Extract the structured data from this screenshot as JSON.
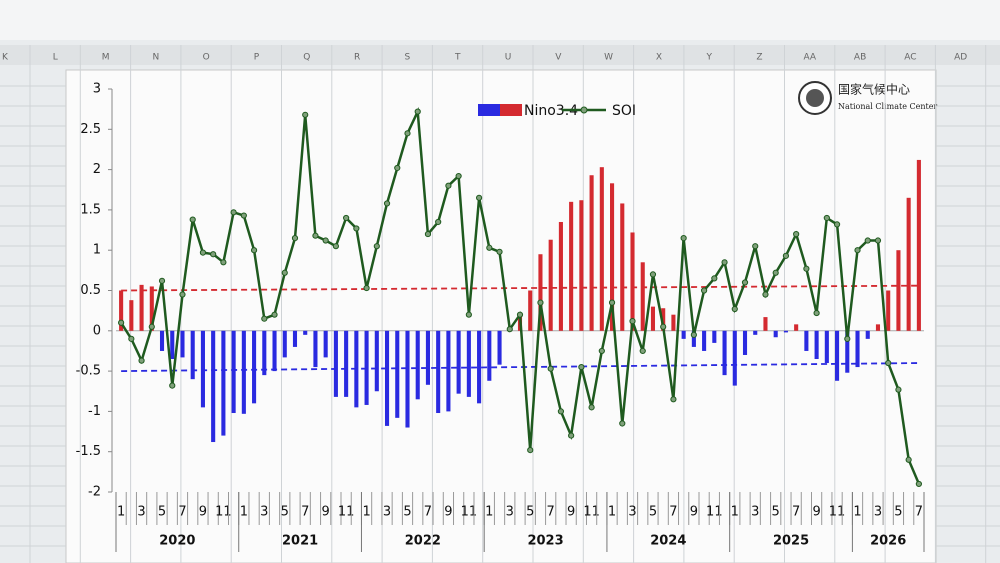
{
  "spreadsheet": {
    "columns": [
      "K",
      "L",
      "M",
      "N",
      "O",
      "P",
      "Q",
      "R",
      "S",
      "T",
      "U",
      "V",
      "W",
      "X",
      "Y",
      "Z",
      "AA",
      "AB",
      "AC",
      "AD"
    ]
  },
  "logo": {
    "name": "国家气候中心",
    "name_en": "National Climate Center"
  },
  "chart_data": {
    "type": "combo",
    "categories": [
      "1",
      null,
      "3",
      null,
      "5",
      null,
      "7",
      null,
      "9",
      null,
      "11",
      null,
      "1",
      null,
      "3",
      null,
      "5",
      null,
      "7",
      null,
      "9",
      null,
      "11",
      null,
      "1",
      null,
      "3",
      null,
      "5",
      null,
      "7",
      null,
      "9",
      null,
      "11",
      null,
      "1",
      null,
      "3",
      null,
      "5",
      null,
      "7",
      null,
      "9",
      null,
      "11",
      null,
      "1",
      null,
      "3",
      null,
      "5",
      null,
      "7",
      null,
      "9",
      null,
      "11",
      null,
      "1",
      null,
      "3",
      null,
      "5",
      null,
      "7",
      null,
      "9",
      null,
      "11",
      null,
      "1",
      null,
      "3",
      null,
      "5",
      null,
      "7"
    ],
    "groups": [
      {
        "label": "2020",
        "size": 12
      },
      {
        "label": "2021",
        "size": 12
      },
      {
        "label": "2022",
        "size": 12
      },
      {
        "label": "2023",
        "size": 12
      },
      {
        "label": "2024",
        "size": 12
      },
      {
        "label": "2025",
        "size": 12
      },
      {
        "label": "2026",
        "size": 7
      }
    ],
    "series": [
      {
        "name": "Nino3.4",
        "type": "bar",
        "positive_color": "#d42a30",
        "negative_color": "#2a2ae0",
        "values": [
          0.5,
          0.38,
          0.57,
          0.55,
          -0.25,
          -0.35,
          -0.33,
          -0.6,
          -0.95,
          -1.38,
          -1.3,
          -1.02,
          -1.03,
          -0.9,
          -0.55,
          -0.5,
          -0.33,
          -0.2,
          -0.05,
          -0.45,
          -0.33,
          -0.82,
          -0.82,
          -0.95,
          -0.92,
          -0.75,
          -1.18,
          -1.08,
          -1.2,
          -0.85,
          -0.67,
          -1.02,
          -1.0,
          -0.78,
          -0.82,
          -0.9,
          -0.62,
          -0.42,
          0.02,
          0.2,
          0.5,
          0.95,
          1.13,
          1.35,
          1.6,
          1.62,
          1.93,
          2.03,
          1.83,
          1.58,
          1.22,
          0.85,
          0.3,
          0.28,
          0.2,
          -0.1,
          -0.2,
          -0.25,
          -0.15,
          -0.55,
          -0.68,
          -0.3,
          -0.05,
          0.17,
          -0.08,
          -0.02,
          0.08,
          -0.25,
          -0.35,
          -0.4,
          -0.62,
          -0.52,
          -0.45,
          -0.1,
          0.08,
          0.5,
          1.0,
          1.65,
          2.12
        ]
      },
      {
        "name": "SOI",
        "type": "line",
        "color": "#1f5a1f",
        "marker_color": "#7fa07a",
        "values": [
          0.1,
          -0.1,
          -0.37,
          0.05,
          0.62,
          -0.68,
          0.45,
          1.38,
          0.97,
          0.95,
          0.85,
          1.47,
          1.43,
          1.0,
          0.15,
          0.2,
          0.72,
          1.15,
          2.68,
          1.18,
          1.12,
          1.05,
          1.4,
          1.27,
          0.53,
          1.05,
          1.58,
          2.02,
          2.45,
          2.72,
          1.2,
          1.35,
          1.8,
          1.92,
          0.2,
          1.65,
          1.03,
          0.98,
          0.02,
          0.2,
          -1.48,
          0.35,
          -0.47,
          -1.0,
          -1.3,
          -0.45,
          -0.95,
          -0.25,
          0.35,
          -1.15,
          0.12,
          -0.25,
          0.7,
          0.05,
          -0.85,
          1.15,
          -0.05,
          0.5,
          0.65,
          0.85,
          0.27,
          0.6,
          1.05,
          0.45,
          0.72,
          0.93,
          1.2,
          0.77,
          0.22,
          1.4,
          1.32,
          -0.1,
          1.0,
          1.12,
          1.12,
          -0.4,
          -0.73,
          -1.6,
          -1.9
        ]
      }
    ],
    "trend_lines": [
      {
        "from": 0.5,
        "to": 0.56,
        "color": "#d42a30"
      },
      {
        "from": -0.5,
        "to": -0.4,
        "color": "#2a2ae0"
      }
    ],
    "ylim": [
      -2,
      3
    ],
    "yticks": [
      -2,
      -1.5,
      -1,
      -0.5,
      0,
      0.5,
      1,
      1.5,
      2,
      2.5,
      3
    ]
  }
}
